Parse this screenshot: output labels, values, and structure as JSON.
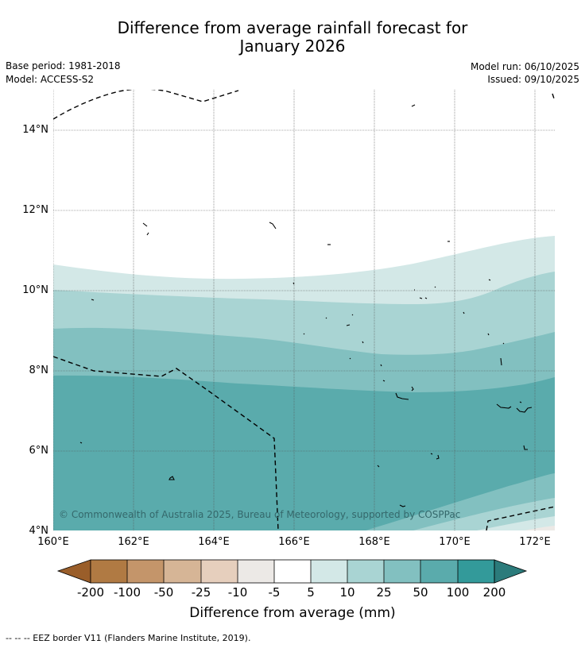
{
  "title": {
    "line1": "Difference from average rainfall forecast for",
    "line2": "January 2026"
  },
  "meta": {
    "base_period": "Base period: 1981-2018",
    "model": "Model: ACCESS-S2",
    "model_run": "Model run: 06/10/2025",
    "issued": "Issued: 09/10/2025"
  },
  "map": {
    "lat_labels": [
      "14°N",
      "12°N",
      "10°N",
      "8°N",
      "6°N",
      "4°N"
    ],
    "lon_labels": [
      "160°E",
      "162°E",
      "164°E",
      "166°E",
      "168°E",
      "170°E",
      "172°E"
    ],
    "copyright": "© Commonwealth of Australia 2025, Bureau of Meteorology, supported by COSPPac"
  },
  "colorbar": {
    "labels": [
      "-200",
      "-100",
      "-50",
      "-25",
      "-10",
      "-5",
      "5",
      "10",
      "25",
      "50",
      "100",
      "200"
    ],
    "colors": [
      "#9a5e2a",
      "#b07a43",
      "#c4956a",
      "#d6b596",
      "#e6cfbd",
      "#ece9e6",
      "#ffffff",
      "#d3e8e7",
      "#a9d4d3",
      "#82c0c0",
      "#5aabac",
      "#339a9a",
      "#2b7b7b"
    ],
    "title": "Difference from average (mm)"
  },
  "footnote": "--  --  -- EEZ border V11 (Flanders Marine Institute, 2019)."
}
